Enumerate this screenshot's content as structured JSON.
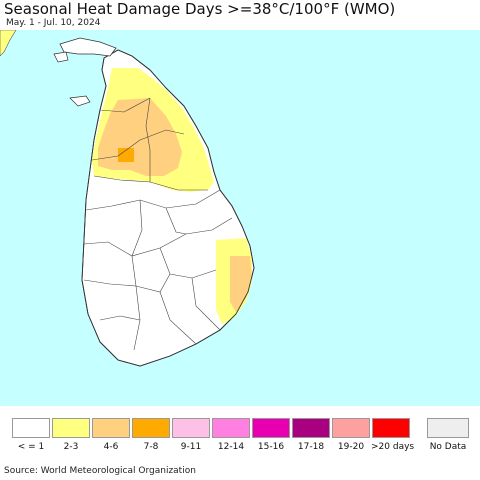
{
  "header": {
    "title": "Seasonal Heat Damage Days >=38°C/100°F (WMO)",
    "subtitle": "May. 1 - Jul. 10, 2024"
  },
  "map": {
    "sea_color": "#c6ffff",
    "land_color": "#ffffff",
    "border_color": "#333333",
    "zones": [
      {
        "class": "2-3",
        "color": "#ffff80"
      },
      {
        "class": "4-6",
        "color": "#ffd080"
      },
      {
        "class": "7-8",
        "color": "#ffaa00"
      }
    ]
  },
  "legend": {
    "items": [
      {
        "label": "< = 1",
        "color": "#ffffff"
      },
      {
        "label": "2-3",
        "color": "#ffff80"
      },
      {
        "label": "4-6",
        "color": "#ffd080"
      },
      {
        "label": "7-8",
        "color": "#ffaa00"
      },
      {
        "label": "9-11",
        "color": "#ffc0e8"
      },
      {
        "label": "12-14",
        "color": "#ff80e0"
      },
      {
        "label": "15-16",
        "color": "#e800b0"
      },
      {
        "label": "17-18",
        "color": "#a80080"
      },
      {
        "label": "19-20",
        "color": "#ffa0a0"
      },
      {
        "label": ">20 days",
        "color": "#ff0000"
      }
    ],
    "no_data": {
      "label": "No Data",
      "color": "#eeeeee"
    }
  },
  "footer": {
    "source": "Source: World Meteorological Organization"
  }
}
